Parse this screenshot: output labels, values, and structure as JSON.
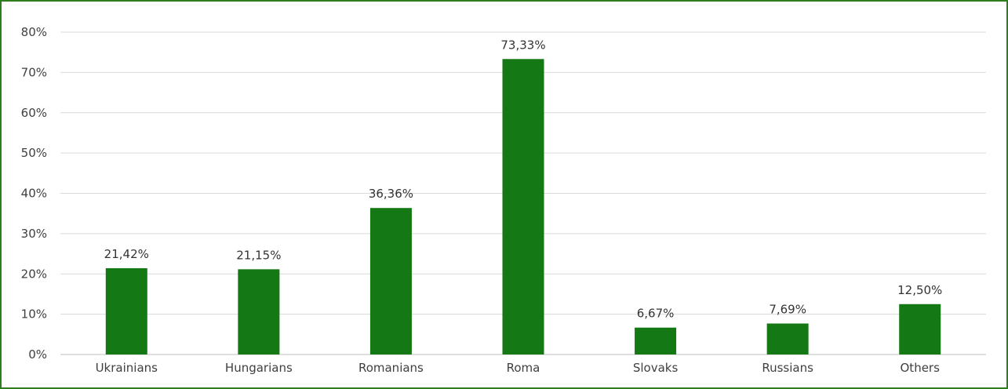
{
  "chart_data": {
    "type": "bar",
    "categories": [
      "Ukrainians",
      "Hungarians",
      "Romanians",
      "Roma",
      "Slovaks",
      "Russians",
      "Others"
    ],
    "values": [
      21.42,
      21.15,
      36.36,
      73.33,
      6.67,
      7.69,
      12.5
    ],
    "data_labels": [
      "21,42%",
      "21,15%",
      "36,36%",
      "73,33%",
      "6,67%",
      "7,69%",
      "12,50%"
    ],
    "y_ticks": [
      0,
      10,
      20,
      30,
      40,
      50,
      60,
      70,
      80
    ],
    "y_tick_labels": [
      "0%",
      "10%",
      "20%",
      "30%",
      "40%",
      "50%",
      "60%",
      "70%",
      "80%"
    ],
    "ylim": [
      0,
      80
    ],
    "title": "",
    "xlabel": "",
    "ylabel": "",
    "grid": true,
    "legend": "none",
    "bar_color": "#147814",
    "frame_color": "#2e7d1e"
  }
}
